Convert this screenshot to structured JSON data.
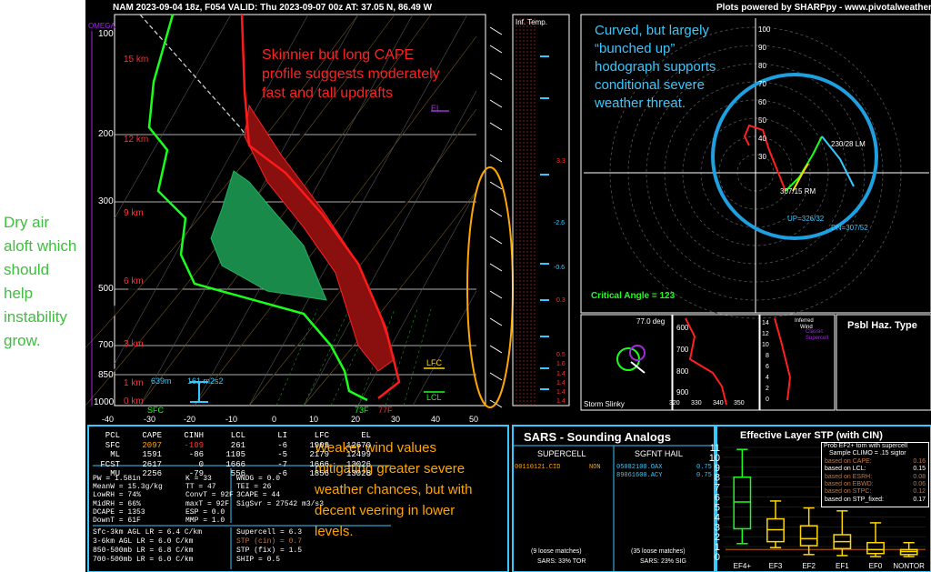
{
  "annotations": {
    "left_note": "Dry air aloft which should help instability grow.",
    "red_note": "Skinnier but long CAPE profile suggests moderately fast and tall updrafts",
    "blue_note": "Curved, but largely “bunched up” hodograph supports conditional severe weather threat.",
    "orange_note": "Weaker wind values mitigating greater severe weather chances, but with decent veering in lower levels."
  },
  "header": {
    "title": "NAM 2023-09-04 18z, F054   VALID: Thu 2023-09-07 00z   AT: 37.05 N, 86.49 W",
    "credit": "Plots powered by SHARPpy - www.pivotalweather.com"
  },
  "skewt": {
    "omega_label": "OMEGA",
    "pressure_ticks": [
      "100",
      "200",
      "300",
      "500",
      "700",
      "850",
      "1000"
    ],
    "height_labels": [
      "15 km",
      "12 km",
      "9 km",
      "6 km",
      "3 km",
      "1 km",
      "0 km"
    ],
    "temp_ticks": [
      "-40",
      "-30",
      "-20",
      "-10",
      "0",
      "10",
      "20",
      "30",
      "40",
      "50"
    ],
    "el_label": "EL",
    "lfc_label": "LFC",
    "lcl_label": "LCL",
    "sfc_label": "SFC",
    "h_639m": "639m",
    "h_161": "161 m2s2",
    "sfc_td": "73F",
    "sfc_t": "77F",
    "inf_temp": "Inf. Temp."
  },
  "inf_temp_values": [
    "3.3",
    "-2.6",
    "-0.6",
    "0.3",
    "0.5",
    "1.6",
    "1.4",
    "1.4",
    "1.4",
    "1.4"
  ],
  "hodograph": {
    "rings": [
      "100",
      "90",
      "80",
      "70",
      "60",
      "50",
      "40",
      "30",
      "20",
      "10"
    ],
    "ring_x": [
      "80",
      "70",
      "60",
      "50",
      "40",
      "30",
      "20",
      "10",
      "10",
      "20",
      "30",
      "40",
      "50",
      "60",
      "70",
      "80"
    ],
    "lm": "230/28 LM",
    "rm": "307/15 RM",
    "up": "UP=326/32",
    "dn": "DN=307/52",
    "critical_angle": "Critical Angle = 123"
  },
  "storm_slinky": {
    "title": "Storm Slinky",
    "angle": "77.0 deg"
  },
  "theta_panel": {
    "y_ticks": [
      "600",
      "700",
      "800",
      "900"
    ],
    "x_ticks": [
      "320",
      "330",
      "340",
      "350"
    ]
  },
  "wind_panel": {
    "y_ticks": [
      "14",
      "12",
      "10",
      "8",
      "6",
      "4",
      "2",
      "0"
    ],
    "label1": "Inferred",
    "label2": "Wind",
    "legend1": "Classic",
    "legend2": "Supercell"
  },
  "psbl_haz": "Psbl Haz. Type",
  "parcels": {
    "headers": [
      "PCL",
      "CAPE",
      "CINH",
      "LCL",
      "LI",
      "LFC",
      "EL"
    ],
    "rows": [
      [
        "SFC",
        "2097",
        "-109",
        "261",
        "-6",
        "1909",
        "12670"
      ],
      [
        "ML",
        "1591",
        "-86",
        "1105",
        "-5",
        "2179",
        "12499"
      ],
      [
        "FCST",
        "2617",
        "0",
        "1666",
        "-7",
        "1666",
        "13026"
      ],
      [
        "MU",
        "2256",
        "-79",
        "556",
        "-6",
        "1856",
        "13026"
      ]
    ]
  },
  "indices": [
    [
      "PW = 1.58in",
      "K = 33",
      "WNDG = 0.0"
    ],
    [
      "MeanW = 15.3g/kg",
      "TT = 47",
      "TEI = 26"
    ],
    [
      "LowRH = 74%",
      "ConvT = 92F",
      "3CAPE = 44"
    ],
    [
      "MidRH = 66%",
      "maxT = 92F",
      ""
    ],
    [
      "DCAPE = 1353",
      "ESP = 0.0",
      ""
    ],
    [
      "DownT = 61F",
      "MMP = 1.0",
      "SigSvr = 27542 m3/s3"
    ]
  ],
  "lapse_rates": [
    "Sfc-3km AGL LR = 6.4 C/km",
    "3-6km AGL LR = 6.0 C/km",
    "850-500mb LR = 6.8 C/km",
    "700-500mb LR = 6.0 C/km"
  ],
  "composites": [
    "Supercell = 6.3",
    "STP (cin) = 0.7",
    "STP (fix) = 1.5",
    "SHIP = 0.5"
  ],
  "sars": {
    "title": "SARS - Sounding Analogs",
    "supercell_label": "SUPERCELL",
    "hail_label": "SGFNT HAIL",
    "sc_match": "00110121.CID",
    "sc_type": "NON",
    "hail_matches": [
      [
        "05082100.OAX",
        "0.75"
      ],
      [
        "89061600.ACY",
        "0.75"
      ]
    ],
    "sc_loose": "(9 loose matches)",
    "sc_pct": "SARS: 33% TOR",
    "hail_loose": "(35 loose matches)",
    "hail_pct": "SARS: 23% SIG"
  },
  "stp": {
    "title": "Effective Layer STP (with CIN)",
    "prob_lines": [
      "Prob EF2+ torn with supercell",
      "Sample CLIMO = .15 sigtor",
      "based on CAPE:",
      "based on LCL:",
      "based on ESRH:",
      "based on EBWD:",
      "based on STPC:",
      "based on STP_fixed:"
    ],
    "prob_values": [
      "",
      "",
      "0.16",
      "0.15",
      "0.08",
      "0.06",
      "0.12",
      "0.17"
    ],
    "categories": [
      "EF4+",
      "EF3",
      "EF2",
      "EF1",
      "EF0",
      "NONTOR"
    ],
    "y_ticks": [
      "0",
      "1",
      "2",
      "3",
      "4",
      "5",
      "6",
      "7",
      "8",
      "9",
      "10",
      "11"
    ]
  },
  "chart_data": {
    "type": "box",
    "title": "Effective Layer STP (with CIN)",
    "categories": [
      "EF4+",
      "EF3",
      "EF2",
      "EF1",
      "EF0",
      "NONTOR"
    ],
    "whisker_low": [
      1.3,
      0.9,
      0.2,
      0.1,
      0.0,
      0.0
    ],
    "q1": [
      2.8,
      1.5,
      1.1,
      0.8,
      0.3,
      0.2
    ],
    "median": [
      5.5,
      2.7,
      1.8,
      1.5,
      0.7,
      0.5
    ],
    "q3": [
      8.0,
      3.8,
      3.1,
      2.2,
      1.4,
      0.7
    ],
    "whisker_high": [
      10.8,
      5.6,
      4.9,
      4.6,
      3.4,
      1.4
    ],
    "current_stp": 0.7,
    "ylim": [
      0,
      11
    ]
  }
}
